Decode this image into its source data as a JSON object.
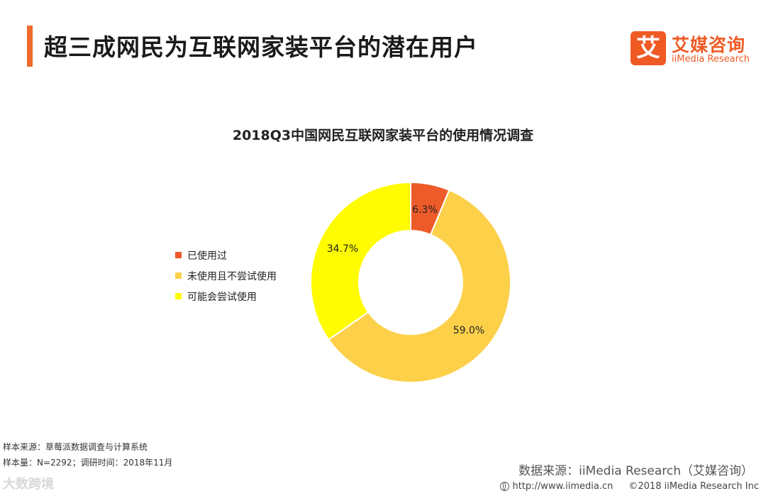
{
  "header": {
    "title": "超三成网民为互联网家装平台的潜在用户",
    "accent_color": "#ef6a2c"
  },
  "logo": {
    "mark": "艾",
    "name": "艾媒咨询",
    "sub": "iiMedia Research",
    "color": "#ef5a24"
  },
  "chart_data": {
    "type": "pie",
    "title": "2018Q3中国网民互联网家装平台的使用情况调查",
    "donut": true,
    "legend_position": "left",
    "categories": [
      "已使用过",
      "未使用且不尝试使用",
      "可能会尝试使用"
    ],
    "values": [
      6.3,
      59.0,
      34.7
    ],
    "labels": [
      "6.3%",
      "59.0%",
      "34.7%"
    ],
    "colors": [
      "#ee5b2a",
      "#fdd04a",
      "#fffb00"
    ]
  },
  "footer": {
    "sample_source": "样本来源：草莓派数据调查与计算系统",
    "sample_size": "样本量：N=2292；调研时间：2018年11月",
    "data_source": "数据来源：iiMedia Research（艾媒咨询）",
    "url": "http://www.iimedia.cn",
    "copyright": "©2018  iiMedia Research  Inc",
    "watermark": "大数跨境"
  }
}
